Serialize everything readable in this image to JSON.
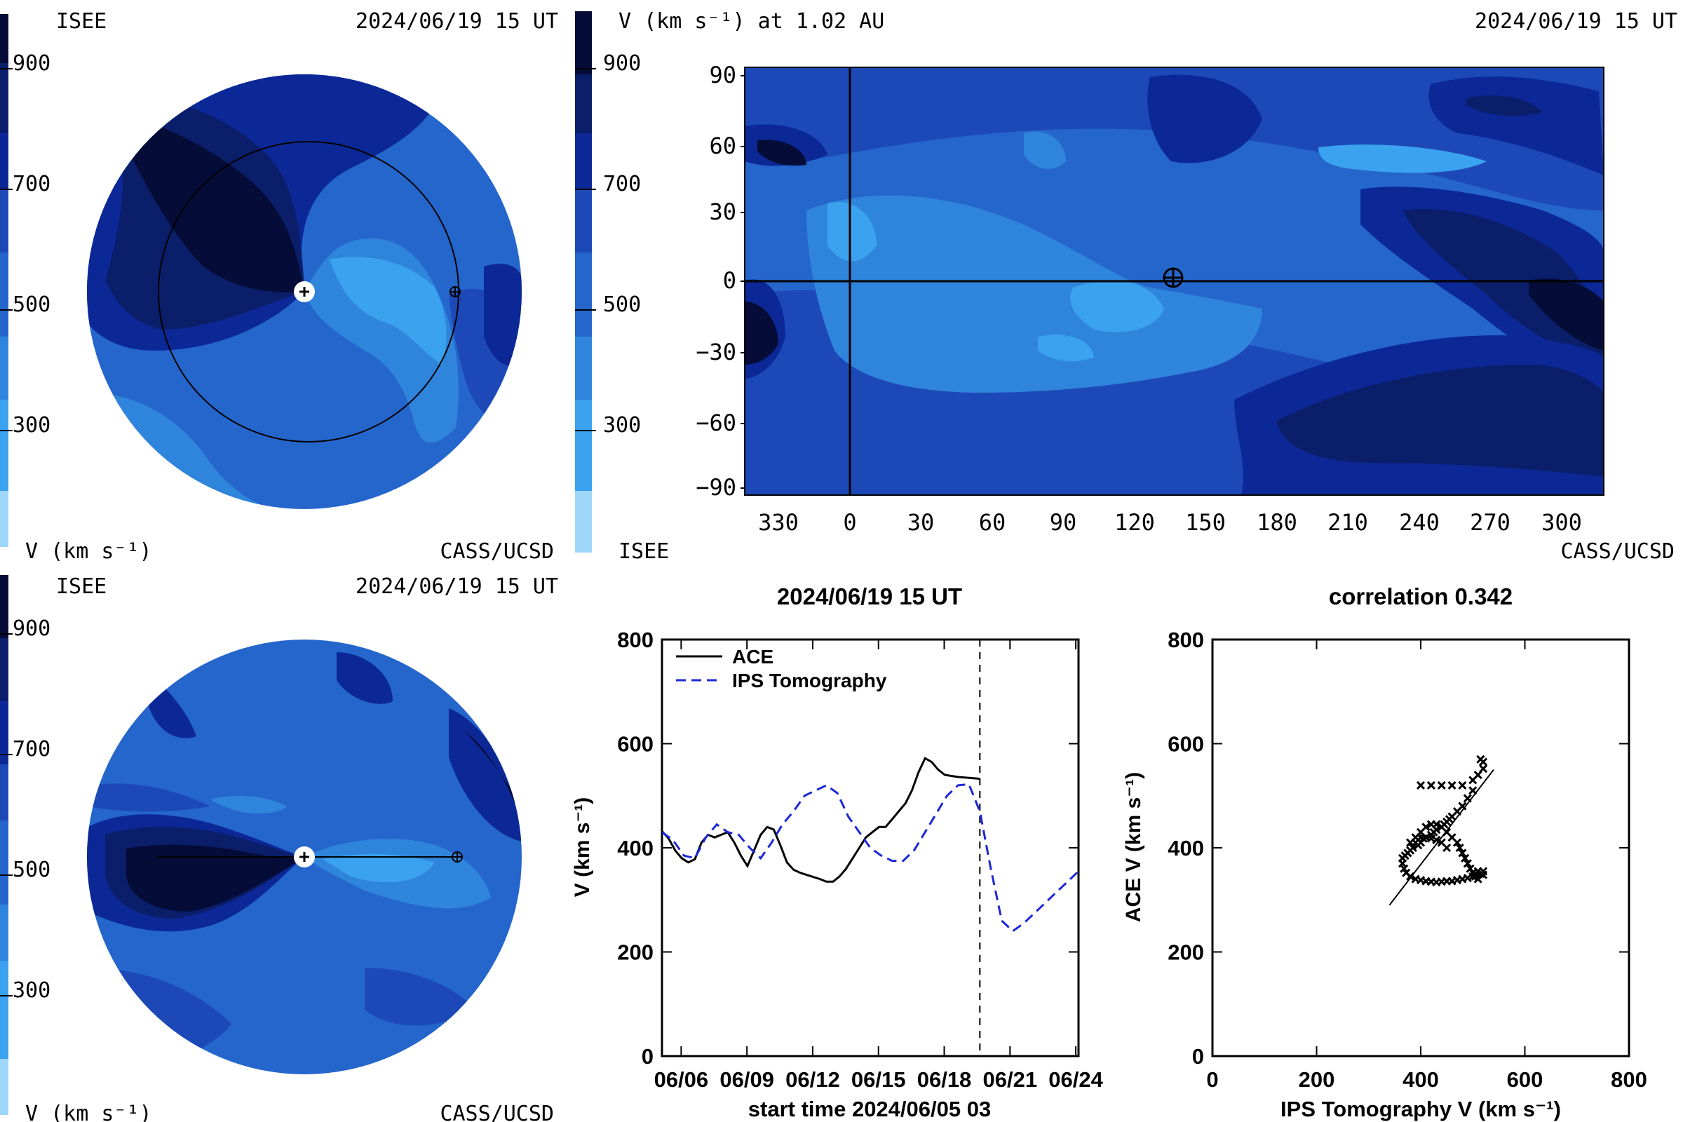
{
  "colors": {
    "v900": "#050c38",
    "v800": "#0a1e6a",
    "v700": "#0c2896",
    "v600": "#1d49b8",
    "v500": "#2566cc",
    "v400": "#2f84dc",
    "v300": "#3aa2ee",
    "v200": "#4fbaf9",
    "v100": "#9fd7fb",
    "series_ace": "#000000",
    "series_ips": "#1c28d8"
  },
  "panel_synoptic_top": {
    "label_left": "ISEE",
    "label_right": "2024/06/19 15 UT",
    "bottom_left": "V (km s⁻¹)",
    "bottom_right": "CASS/UCSD",
    "colorbar_ticks": [
      "900",
      "700",
      "500",
      "300"
    ]
  },
  "panel_synoptic_bottom": {
    "label_left": "ISEE",
    "label_right": "2024/06/19 15 UT",
    "bottom_left": "V (km s⁻¹)",
    "bottom_right": "CASS/UCSD",
    "colorbar_ticks": [
      "900",
      "700",
      "500",
      "300"
    ]
  },
  "panel_map": {
    "title_left": "V (km s⁻¹) at 1.02 AU",
    "title_right": "2024/06/19 15 UT",
    "bottom_left": "ISEE",
    "bottom_right": "CASS/UCSD",
    "colorbar_ticks": [
      "900",
      "700",
      "500",
      "300"
    ],
    "y_ticks": [
      "90",
      "60",
      "30",
      "0",
      "−30",
      "−60",
      "−90"
    ],
    "x_ticks": [
      "330",
      "0",
      "30",
      "60",
      "90",
      "120",
      "150",
      "180",
      "210",
      "240",
      "270",
      "300"
    ]
  },
  "chart_data": [
    {
      "type": "line",
      "title": "2024/06/19 15 UT",
      "xlabel": "start time 2024/06/05 03",
      "ylabel": "V (km s⁻¹)",
      "ylim": [
        0,
        800
      ],
      "xlim_days": [
        0,
        19
      ],
      "x_ticks": [
        "06/06",
        "06/09",
        "06/12",
        "06/15",
        "06/18",
        "06/21",
        "06/24"
      ],
      "y_ticks": [
        "800",
        "600",
        "400",
        "200",
        "0"
      ],
      "legend": "top-left",
      "current_time_day": 14.5,
      "series": [
        {
          "name": "ACE",
          "style": "solid",
          "x": [
            0,
            0.3,
            0.6,
            0.9,
            1.2,
            1.5,
            1.8,
            2.1,
            2.4,
            2.7,
            3.0,
            3.3,
            3.6,
            3.9,
            4.2,
            4.5,
            4.8,
            5.1,
            5.4,
            5.7,
            6.0,
            6.3,
            6.6,
            6.9,
            7.2,
            7.5,
            7.8,
            8.1,
            8.4,
            8.7,
            9.0,
            9.3,
            9.6,
            9.9,
            10.2,
            10.5,
            10.8,
            11.1,
            11.4,
            11.7,
            12.0,
            12.3,
            12.6,
            12.9,
            13.2,
            13.5,
            13.8,
            14.1,
            14.4,
            14.5
          ],
          "y": [
            432,
            418,
            395,
            380,
            372,
            378,
            410,
            425,
            420,
            425,
            430,
            410,
            385,
            365,
            395,
            425,
            440,
            435,
            405,
            372,
            358,
            352,
            348,
            344,
            340,
            335,
            335,
            345,
            360,
            380,
            400,
            420,
            430,
            440,
            440,
            455,
            470,
            485,
            510,
            545,
            572,
            565,
            550,
            540,
            538,
            536,
            535,
            534,
            533,
            532
          ]
        },
        {
          "name": "IPS Tomography",
          "style": "dashed",
          "x": [
            0,
            0.5,
            1.0,
            1.5,
            2.0,
            2.5,
            3.0,
            3.5,
            4.0,
            4.5,
            5.0,
            5.5,
            6.0,
            6.5,
            7.0,
            7.5,
            8.0,
            8.5,
            9.0,
            9.5,
            10.0,
            10.5,
            11.0,
            11.5,
            12.0,
            12.5,
            13.0,
            13.5,
            14.0,
            14.5,
            15.0,
            15.5,
            16.0,
            16.5,
            17.0,
            17.5,
            18.0,
            18.5,
            19.0
          ],
          "y": [
            430,
            415,
            385,
            380,
            420,
            445,
            430,
            425,
            400,
            380,
            410,
            445,
            470,
            500,
            510,
            520,
            505,
            460,
            430,
            400,
            385,
            375,
            375,
            395,
            430,
            465,
            500,
            520,
            522,
            470,
            360,
            260,
            240,
            255,
            275,
            295,
            315,
            335,
            355
          ]
        }
      ]
    },
    {
      "type": "scatter",
      "title": "correlation 0.342",
      "xlabel": "IPS Tomography V (km s⁻¹)",
      "ylabel": "ACE V (km s⁻¹)",
      "xlim": [
        0,
        800
      ],
      "ylim": [
        0,
        800
      ],
      "x_ticks": [
        "0",
        "200",
        "400",
        "600",
        "800"
      ],
      "y_ticks": [
        "800",
        "600",
        "400",
        "200",
        "0"
      ],
      "fit_line": {
        "x": [
          340,
          540
        ],
        "y": [
          290,
          550
        ]
      },
      "points": [
        [
          400,
          520
        ],
        [
          420,
          520
        ],
        [
          440,
          520
        ],
        [
          460,
          520
        ],
        [
          480,
          520
        ],
        [
          500,
          530
        ],
        [
          510,
          540
        ],
        [
          520,
          552
        ],
        [
          520,
          565
        ],
        [
          515,
          570
        ],
        [
          500,
          510
        ],
        [
          490,
          495
        ],
        [
          480,
          480
        ],
        [
          470,
          470
        ],
        [
          460,
          460
        ],
        [
          455,
          455
        ],
        [
          450,
          450
        ],
        [
          445,
          445
        ],
        [
          440,
          440
        ],
        [
          430,
          435
        ],
        [
          425,
          430
        ],
        [
          420,
          425
        ],
        [
          410,
          420
        ],
        [
          400,
          420
        ],
        [
          395,
          415
        ],
        [
          390,
          410
        ],
        [
          450,
          400
        ],
        [
          440,
          410
        ],
        [
          430,
          415
        ],
        [
          420,
          418
        ],
        [
          410,
          420
        ],
        [
          405,
          418
        ],
        [
          400,
          410
        ],
        [
          395,
          405
        ],
        [
          385,
          400
        ],
        [
          380,
          395
        ],
        [
          375,
          390
        ],
        [
          370,
          385
        ],
        [
          365,
          380
        ],
        [
          365,
          370
        ],
        [
          368,
          360
        ],
        [
          372,
          352
        ],
        [
          380,
          345
        ],
        [
          390,
          340
        ],
        [
          400,
          338
        ],
        [
          410,
          336
        ],
        [
          420,
          335
        ],
        [
          430,
          334
        ],
        [
          440,
          335
        ],
        [
          450,
          336
        ],
        [
          460,
          336
        ],
        [
          470,
          338
        ],
        [
          480,
          340
        ],
        [
          490,
          342
        ],
        [
          500,
          345
        ],
        [
          505,
          350
        ],
        [
          510,
          355
        ],
        [
          515,
          350
        ],
        [
          520,
          348
        ],
        [
          520,
          355
        ],
        [
          380,
          410
        ],
        [
          390,
          420
        ],
        [
          400,
          430
        ],
        [
          410,
          440
        ],
        [
          420,
          445
        ],
        [
          430,
          445
        ],
        [
          440,
          440
        ],
        [
          450,
          430
        ],
        [
          460,
          420
        ],
        [
          470,
          410
        ],
        [
          475,
          400
        ],
        [
          480,
          390
        ],
        [
          485,
          380
        ],
        [
          490,
          370
        ],
        [
          495,
          360
        ],
        [
          500,
          352
        ],
        [
          505,
          345
        ],
        [
          510,
          340
        ]
      ]
    }
  ]
}
